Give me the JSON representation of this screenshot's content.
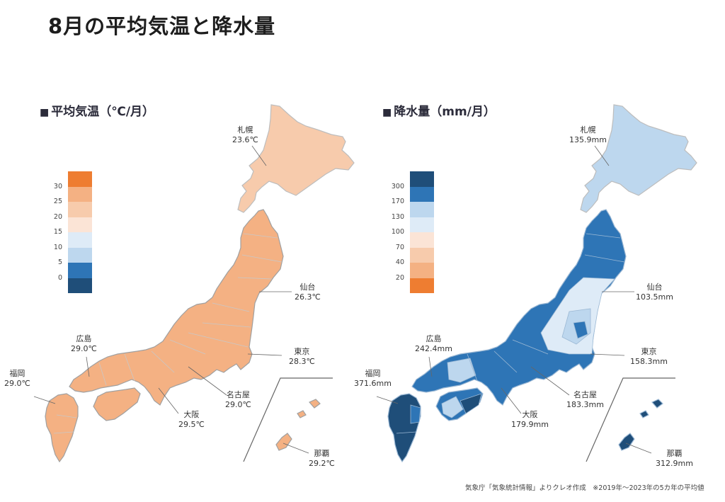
{
  "page_title": "8月の平均気温と降水量",
  "temperature_panel": {
    "title": "平均気温（℃/月）",
    "legend_ticks": [
      "30",
      "25",
      "20",
      "15",
      "10",
      "5",
      "0"
    ],
    "legend_colors": [
      "#ee7d31",
      "#f4b183",
      "#f7cbac",
      "#fbe4d6",
      "#deebf7",
      "#bdd7ee",
      "#2e75b6",
      "#1f4e79"
    ],
    "map_fill": "#f4b183",
    "cities": [
      {
        "name": "札幌",
        "value": "23.6℃"
      },
      {
        "name": "仙台",
        "value": "26.3℃"
      },
      {
        "name": "東京",
        "value": "28.3℃"
      },
      {
        "name": "名古屋",
        "value": "29.0℃"
      },
      {
        "name": "大阪",
        "value": "29.5℃"
      },
      {
        "name": "広島",
        "value": "29.0℃"
      },
      {
        "name": "福岡",
        "value": "29.0℃"
      },
      {
        "name": "那覇",
        "value": "29.2℃"
      }
    ]
  },
  "precipitation_panel": {
    "title": "降水量（mm/月）",
    "legend_ticks": [
      "300",
      "170",
      "130",
      "100",
      "70",
      "40",
      "20"
    ],
    "legend_colors": [
      "#1f4e79",
      "#2e75b6",
      "#bdd7ee",
      "#deebf7",
      "#fbe4d6",
      "#f7cbac",
      "#f4b183",
      "#ee7d31"
    ],
    "cities": [
      {
        "name": "札幌",
        "value": "135.9mm"
      },
      {
        "name": "仙台",
        "value": "103.5mm"
      },
      {
        "name": "東京",
        "value": "158.3mm"
      },
      {
        "name": "名古屋",
        "value": "183.3mm"
      },
      {
        "name": "大阪",
        "value": "179.9mm"
      },
      {
        "name": "広島",
        "value": "242.4mm"
      },
      {
        "name": "福岡",
        "value": "371.6mm"
      },
      {
        "name": "那覇",
        "value": "312.9mm"
      }
    ]
  },
  "footer_note": "気象庁「気象統計情報」よりクレオ作成　※2019年〜2023年の5カ年の平均値"
}
